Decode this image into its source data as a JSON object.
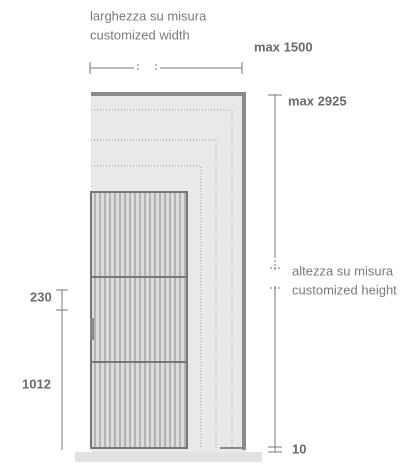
{
  "width_label": {
    "it": "larghezza su misura",
    "en": "customized width"
  },
  "max_width": "max 1500",
  "max_height": "max 2925",
  "height_label": {
    "it": "altezza su misura",
    "en": "customized height"
  },
  "handle_offset": "230",
  "handle_height": "1012",
  "bottom_gap": "10"
}
